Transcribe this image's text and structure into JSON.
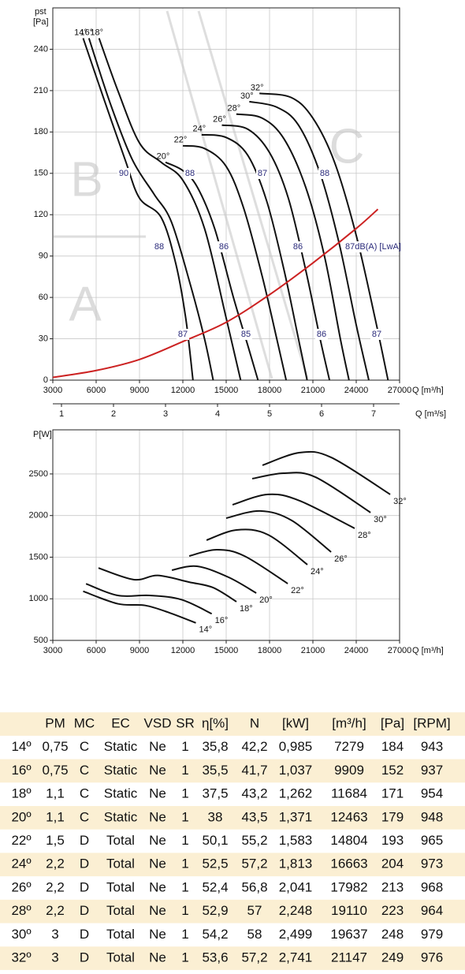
{
  "chart_data": [
    {
      "type": "line",
      "x_label": "Q [m³/h]",
      "x2_label": "Q [m³/s]",
      "y_label": "pst",
      "y_unit": "[Pa]",
      "xlim": [
        3000,
        27000
      ],
      "xticks": [
        3000,
        6000,
        9000,
        12000,
        15000,
        18000,
        21000,
        24000,
        27000
      ],
      "x2lim": [
        0.8333,
        7.5
      ],
      "x2ticks": [
        1,
        2,
        3,
        4,
        5,
        6,
        7
      ],
      "ylim": [
        0,
        270
      ],
      "yticks": [
        0,
        30,
        60,
        90,
        120,
        150,
        180,
        210,
        240
      ],
      "grid": true,
      "zones": [
        "B",
        "A",
        "C"
      ],
      "db_labels": [
        "90",
        "88",
        "87",
        "88",
        "88",
        "86",
        "86",
        "87dB(A) [LwA]",
        "87",
        "85",
        "86",
        "87"
      ],
      "series": [
        {
          "name": "14°",
          "color": "#111111",
          "x": [
            5100,
            6500,
            8000,
            9000,
            10500,
            11500,
            12200,
            12700
          ],
          "values": [
            248,
            205,
            160,
            132,
            118,
            85,
            45,
            0
          ]
        },
        {
          "name": "16°",
          "color": "#111111",
          "x": [
            5500,
            7000,
            8500,
            10000,
            11200,
            12500,
            13500,
            14100
          ],
          "values": [
            248,
            200,
            160,
            135,
            115,
            70,
            30,
            0
          ]
        },
        {
          "name": "18°",
          "color": "#111111",
          "x": [
            6200,
            7500,
            9000,
            10500,
            12000,
            13500,
            15000,
            16000
          ],
          "values": [
            248,
            210,
            172,
            158,
            145,
            110,
            45,
            0
          ]
        },
        {
          "name": "20°",
          "color": "#111111",
          "x": [
            10800,
            12000,
            13000,
            14200,
            15500,
            16500,
            17200
          ],
          "values": [
            158,
            152,
            140,
            110,
            60,
            25,
            0
          ]
        },
        {
          "name": "22°",
          "color": "#111111",
          "x": [
            12000,
            13500,
            15000,
            16200,
            17500,
            18500,
            19150
          ],
          "values": [
            170,
            168,
            155,
            125,
            75,
            30,
            0
          ]
        },
        {
          "name": "24°",
          "color": "#111111",
          "x": [
            13300,
            15000,
            16500,
            17800,
            19000,
            20000,
            20600
          ],
          "values": [
            178,
            176,
            163,
            130,
            80,
            30,
            0
          ]
        },
        {
          "name": "26°",
          "color": "#111111",
          "x": [
            14700,
            16500,
            18000,
            19300,
            20500,
            21500,
            22150
          ],
          "values": [
            185,
            182,
            165,
            132,
            80,
            30,
            0
          ]
        },
        {
          "name": "28°",
          "color": "#111111",
          "x": [
            15700,
            17500,
            19000,
            20500,
            21800,
            22900,
            23500
          ],
          "values": [
            193,
            190,
            175,
            140,
            90,
            30,
            0
          ]
        },
        {
          "name": "30°",
          "color": "#111111",
          "x": [
            16600,
            18500,
            20000,
            21500,
            22800,
            24000,
            24870
          ],
          "values": [
            202,
            198,
            185,
            150,
            100,
            40,
            0
          ]
        },
        {
          "name": "32°",
          "color": "#111111",
          "x": [
            17300,
            19500,
            21000,
            22500,
            24000,
            25300,
            26200
          ],
          "values": [
            208,
            205,
            190,
            158,
            105,
            45,
            0
          ]
        },
        {
          "color": "#cc2222",
          "x": [
            3000,
            6000,
            9000,
            12000,
            15000,
            18000,
            21000,
            24000,
            25500
          ],
          "values": [
            2,
            7,
            15,
            28,
            42,
            62,
            85,
            110,
            124
          ]
        }
      ]
    },
    {
      "type": "line",
      "x_label": "Q [m³/h]",
      "y_label": "P[W]",
      "xlim": [
        3000,
        27000
      ],
      "xticks": [
        3000,
        6000,
        9000,
        12000,
        15000,
        18000,
        21000,
        24000,
        27000
      ],
      "ylim": [
        500,
        3030
      ],
      "yticks": [
        500,
        1000,
        1500,
        2000,
        2500
      ],
      "grid": true,
      "series": [
        {
          "name": "14°",
          "color": "#111111",
          "x": [
            5100,
            7500,
            9400,
            11100,
            12900
          ],
          "values": [
            1090,
            940,
            920,
            830,
            710
          ]
        },
        {
          "name": "16°",
          "color": "#111111",
          "x": [
            5300,
            7500,
            9700,
            11900,
            14000
          ],
          "values": [
            1180,
            1040,
            1040,
            990,
            820
          ]
        },
        {
          "name": "18°",
          "color": "#111111",
          "x": [
            6160,
            8620,
            10260,
            12440,
            14080,
            15710
          ],
          "values": [
            1370,
            1230,
            1280,
            1200,
            1135,
            965
          ]
        },
        {
          "name": "20°",
          "color": "#111111",
          "x": [
            11240,
            12980,
            15170,
            17080
          ],
          "values": [
            1344,
            1391,
            1258,
            1069
          ]
        },
        {
          "name": "22°",
          "color": "#111111",
          "x": [
            12440,
            14350,
            16260,
            19260
          ],
          "values": [
            1514,
            1590,
            1514,
            1182
          ]
        },
        {
          "name": "24°",
          "color": "#111111",
          "x": [
            13640,
            15710,
            17890,
            20620
          ],
          "values": [
            1704,
            1827,
            1770,
            1410
          ]
        },
        {
          "name": "26°",
          "color": "#111111",
          "x": [
            15000,
            17350,
            19530,
            22260
          ],
          "values": [
            1969,
            2055,
            1941,
            1562
          ]
        },
        {
          "name": "28°",
          "color": "#111111",
          "x": [
            15440,
            17890,
            20080,
            23890
          ],
          "values": [
            2130,
            2254,
            2178,
            1846
          ]
        },
        {
          "name": "30°",
          "color": "#111111",
          "x": [
            16800,
            18980,
            21170,
            24990
          ],
          "values": [
            2443,
            2509,
            2462,
            2036
          ]
        },
        {
          "name": "32°",
          "color": "#111111",
          "x": [
            17510,
            20080,
            22260,
            26350
          ],
          "values": [
            2604,
            2756,
            2699,
            2254
          ]
        }
      ]
    }
  ],
  "table": {
    "header": [
      "PM",
      "MC",
      "EC",
      "VSD",
      "SR",
      "η[%]",
      "N",
      "[kW]",
      "[m³/h]",
      "[Pa]",
      "[RPM]"
    ],
    "rows": [
      [
        "14º",
        "0,75",
        "C",
        "Static",
        "Ne",
        "1",
        "35,8",
        "42,2",
        "0,985",
        "7279",
        "184",
        "943"
      ],
      [
        "16º",
        "0,75",
        "C",
        "Static",
        "Ne",
        "1",
        "35,5",
        "41,7",
        "1,037",
        "9909",
        "152",
        "937"
      ],
      [
        "18º",
        "1,1",
        "C",
        "Static",
        "Ne",
        "1",
        "37,5",
        "43,2",
        "1,262",
        "11684",
        "171",
        "954"
      ],
      [
        "20º",
        "1,1",
        "C",
        "Static",
        "Ne",
        "1",
        "38",
        "43,5",
        "1,371",
        "12463",
        "179",
        "948"
      ],
      [
        "22º",
        "1,5",
        "D",
        "Total",
        "Ne",
        "1",
        "50,1",
        "55,2",
        "1,583",
        "14804",
        "193",
        "965"
      ],
      [
        "24º",
        "2,2",
        "D",
        "Total",
        "Ne",
        "1",
        "52,5",
        "57,2",
        "1,813",
        "16663",
        "204",
        "973"
      ],
      [
        "26º",
        "2,2",
        "D",
        "Total",
        "Ne",
        "1",
        "52,4",
        "56,8",
        "2,041",
        "17982",
        "213",
        "968"
      ],
      [
        "28º",
        "2,2",
        "D",
        "Total",
        "Ne",
        "1",
        "52,9",
        "57",
        "2,248",
        "19110",
        "223",
        "964"
      ],
      [
        "30º",
        "3",
        "D",
        "Total",
        "Ne",
        "1",
        "54,2",
        "58",
        "2,499",
        "19637",
        "248",
        "979"
      ],
      [
        "32º",
        "3",
        "D",
        "Total",
        "Ne",
        "1",
        "53,6",
        "57,2",
        "2,741",
        "21147",
        "249",
        "976"
      ]
    ]
  }
}
